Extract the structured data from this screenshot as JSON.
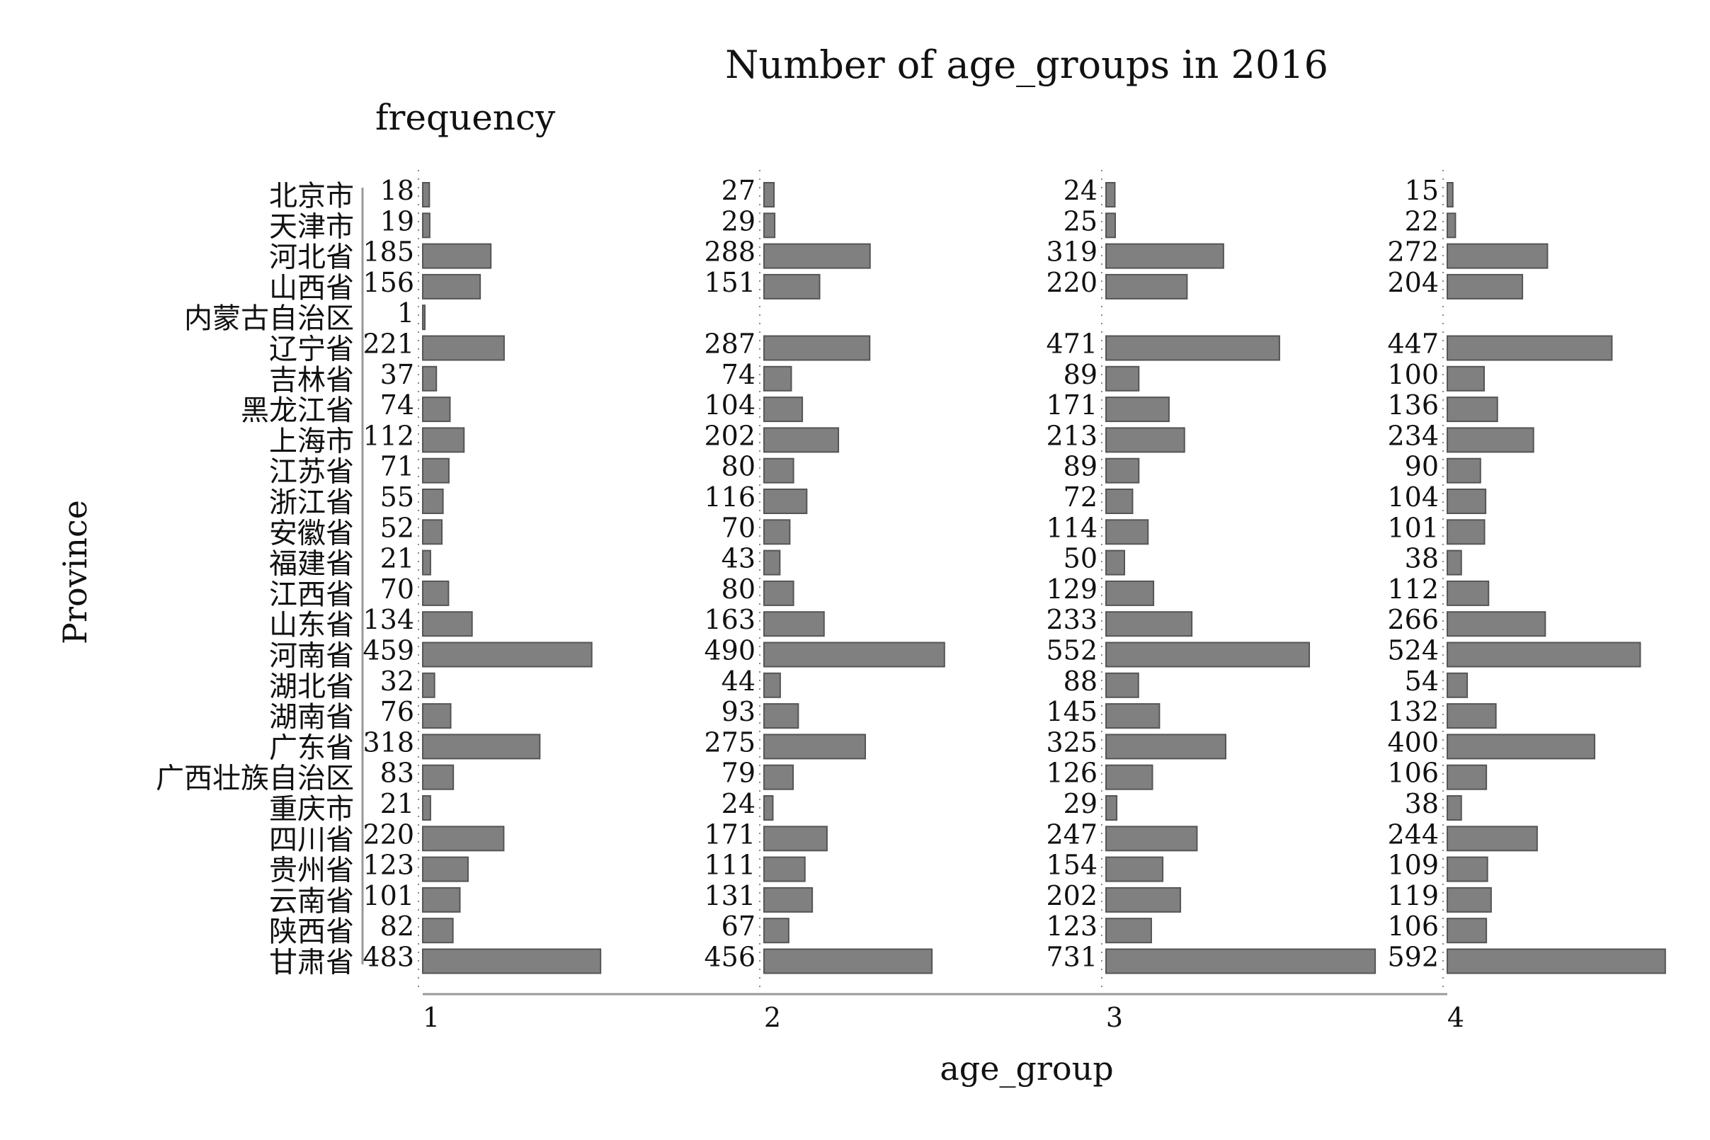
{
  "chart_data": {
    "type": "bar",
    "orientation": "horizontal",
    "title": "Number of age_groups in 2016",
    "subtitle": "frequency",
    "xlabel": "age_group",
    "ylabel": "Province",
    "bar_color": "#808080",
    "bar_edge_color": "#555555",
    "axis_color": "#999999",
    "facets": [
      "1",
      "2",
      "3",
      "4"
    ],
    "categories": [
      "北京市",
      "天津市",
      "河北省",
      "山西省",
      "内蒙古自治区",
      "辽宁省",
      "吉林省",
      "黑龙江省",
      "上海市",
      "江苏省",
      "浙江省",
      "安徽省",
      "福建省",
      "江西省",
      "山东省",
      "河南省",
      "湖北省",
      "湖南省",
      "广东省",
      "广西壮族自治区",
      "重庆市",
      "四川省",
      "贵州省",
      "云南省",
      "陕西省",
      "甘肃省"
    ],
    "series": [
      {
        "values": [
          18,
          19,
          185,
          156,
          1,
          221,
          37,
          74,
          112,
          71,
          55,
          52,
          21,
          70,
          134,
          459,
          32,
          76,
          318,
          83,
          21,
          220,
          123,
          101,
          82,
          483
        ]
      },
      {
        "values": [
          27,
          29,
          288,
          151,
          null,
          287,
          74,
          104,
          202,
          80,
          116,
          70,
          43,
          80,
          163,
          490,
          44,
          93,
          275,
          79,
          24,
          171,
          111,
          131,
          67,
          456
        ]
      },
      {
        "values": [
          24,
          25,
          319,
          220,
          null,
          471,
          89,
          171,
          213,
          89,
          72,
          114,
          50,
          129,
          233,
          552,
          88,
          145,
          325,
          126,
          29,
          247,
          154,
          202,
          123,
          731
        ]
      },
      {
        "values": [
          15,
          22,
          272,
          204,
          null,
          447,
          100,
          136,
          234,
          90,
          104,
          101,
          38,
          112,
          266,
          524,
          54,
          132,
          400,
          106,
          38,
          244,
          109,
          119,
          106,
          592
        ]
      }
    ]
  }
}
